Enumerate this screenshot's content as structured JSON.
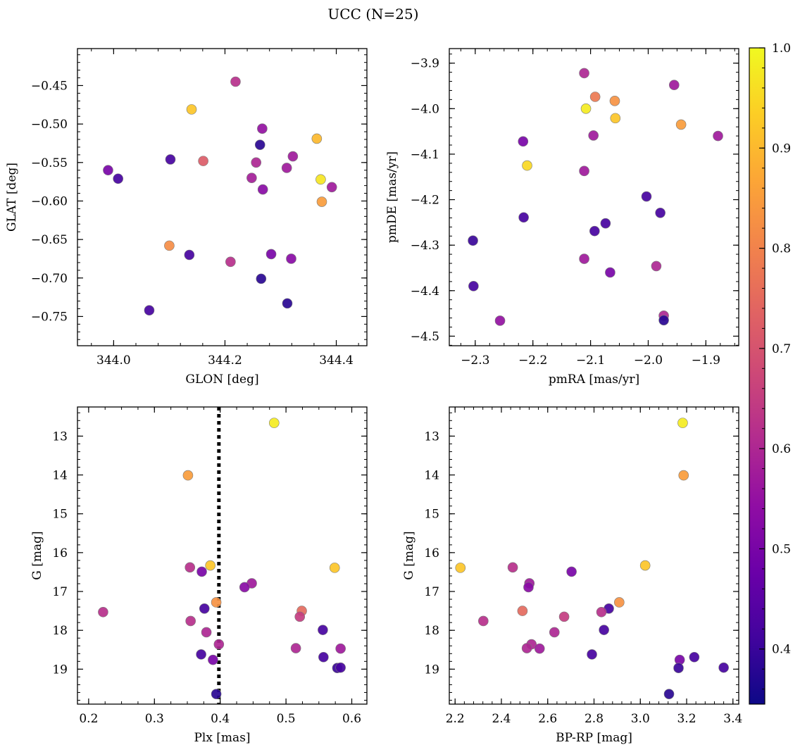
{
  "figure_title": "UCC (N=25)",
  "colorbar": {
    "range": [
      0.345,
      1.0
    ],
    "ticks": [
      "0.4",
      "0.5",
      "0.6",
      "0.7",
      "0.8",
      "0.9",
      "1.0"
    ],
    "colormap": "plasma"
  },
  "chart_data": [
    {
      "type": "scatter",
      "title": "",
      "xlabel": "GLON [deg]",
      "ylabel": "GLAT [deg]",
      "xlim": [
        343.935,
        344.455
      ],
      "ylim": [
        -0.788,
        -0.402
      ],
      "y_inverted": false,
      "xticks": [
        "344.0",
        "344.2",
        "344.4"
      ],
      "yticks": [
        "-0.45",
        "-0.50",
        "-0.55",
        "-0.60",
        "-0.65",
        "-0.70",
        "-0.75"
      ],
      "grid": false,
      "points": [
        {
          "x": 344.219,
          "y": -0.445,
          "c": 0.62
        },
        {
          "x": 344.14,
          "y": -0.481,
          "c": 0.92
        },
        {
          "x": 344.267,
          "y": -0.506,
          "c": 0.55
        },
        {
          "x": 344.365,
          "y": -0.519,
          "c": 0.9
        },
        {
          "x": 344.263,
          "y": -0.527,
          "c": 0.38
        },
        {
          "x": 344.322,
          "y": -0.542,
          "c": 0.57
        },
        {
          "x": 344.102,
          "y": -0.546,
          "c": 0.42
        },
        {
          "x": 344.161,
          "y": -0.548,
          "c": 0.72
        },
        {
          "x": 344.256,
          "y": -0.55,
          "c": 0.6
        },
        {
          "x": 344.311,
          "y": -0.557,
          "c": 0.57
        },
        {
          "x": 343.99,
          "y": -0.56,
          "c": 0.5
        },
        {
          "x": 344.248,
          "y": -0.57,
          "c": 0.58
        },
        {
          "x": 344.008,
          "y": -0.571,
          "c": 0.42
        },
        {
          "x": 344.372,
          "y": -0.572,
          "c": 0.97
        },
        {
          "x": 344.392,
          "y": -0.582,
          "c": 0.57
        },
        {
          "x": 344.268,
          "y": -0.585,
          "c": 0.53
        },
        {
          "x": 344.374,
          "y": -0.601,
          "c": 0.85
        },
        {
          "x": 344.1,
          "y": -0.658,
          "c": 0.82
        },
        {
          "x": 344.136,
          "y": -0.67,
          "c": 0.42
        },
        {
          "x": 344.283,
          "y": -0.669,
          "c": 0.5
        },
        {
          "x": 344.319,
          "y": -0.675,
          "c": 0.53
        },
        {
          "x": 344.21,
          "y": -0.679,
          "c": 0.62
        },
        {
          "x": 344.265,
          "y": -0.701,
          "c": 0.38
        },
        {
          "x": 344.312,
          "y": -0.733,
          "c": 0.38
        },
        {
          "x": 344.064,
          "y": -0.742,
          "c": 0.42
        }
      ]
    },
    {
      "type": "scatter",
      "title": "",
      "xlabel": "pmRA [mas/yr]",
      "ylabel": "pmDE [mas/yr]",
      "xlim": [
        -2.345,
        -1.843
      ],
      "ylim": [
        -4.521,
        -3.868
      ],
      "y_inverted": false,
      "xticks": [
        "-2.3",
        "-2.2",
        "-2.1",
        "-2.0",
        "-1.9"
      ],
      "yticks": [
        "-3.9",
        "-4.0",
        "-4.1",
        "-4.2",
        "-4.3",
        "-4.4",
        "-4.5"
      ],
      "grid": false,
      "points": [
        {
          "x": -2.111,
          "y": -3.922,
          "c": 0.6
        },
        {
          "x": -1.955,
          "y": -3.948,
          "c": 0.57
        },
        {
          "x": -2.092,
          "y": -3.974,
          "c": 0.78
        },
        {
          "x": -2.058,
          "y": -3.983,
          "c": 0.83
        },
        {
          "x": -2.108,
          "y": -4.0,
          "c": 0.98
        },
        {
          "x": -2.057,
          "y": -4.021,
          "c": 0.92
        },
        {
          "x": -1.943,
          "y": -4.035,
          "c": 0.85
        },
        {
          "x": -2.095,
          "y": -4.059,
          "c": 0.57
        },
        {
          "x": -1.879,
          "y": -4.06,
          "c": 0.57
        },
        {
          "x": -2.217,
          "y": -4.072,
          "c": 0.5
        },
        {
          "x": -2.21,
          "y": -4.125,
          "c": 0.95
        },
        {
          "x": -2.111,
          "y": -4.137,
          "c": 0.57
        },
        {
          "x": -2.003,
          "y": -4.193,
          "c": 0.42
        },
        {
          "x": -1.979,
          "y": -4.229,
          "c": 0.42
        },
        {
          "x": -2.216,
          "y": -4.239,
          "c": 0.42
        },
        {
          "x": -2.074,
          "y": -4.252,
          "c": 0.42
        },
        {
          "x": -2.093,
          "y": -4.269,
          "c": 0.42
        },
        {
          "x": -2.304,
          "y": -4.29,
          "c": 0.4
        },
        {
          "x": -2.111,
          "y": -4.33,
          "c": 0.57
        },
        {
          "x": -1.986,
          "y": -4.346,
          "c": 0.6
        },
        {
          "x": -2.066,
          "y": -4.36,
          "c": 0.5
        },
        {
          "x": -2.303,
          "y": -4.39,
          "c": 0.42
        },
        {
          "x": -1.973,
          "y": -4.455,
          "c": 0.6
        },
        {
          "x": -1.973,
          "y": -4.465,
          "c": 0.38
        },
        {
          "x": -2.257,
          "y": -4.466,
          "c": 0.55
        }
      ]
    },
    {
      "type": "scatter",
      "title": "",
      "xlabel": "Plx [mas]",
      "ylabel": "G [mag]",
      "xlim": [
        0.183,
        0.623
      ],
      "ylim": [
        12.25,
        19.9
      ],
      "y_inverted": true,
      "xticks": [
        "0.2",
        "0.3",
        "0.4",
        "0.5",
        "0.6"
      ],
      "yticks": [
        "13",
        "14",
        "15",
        "16",
        "17",
        "18",
        "19"
      ],
      "grid": false,
      "reference_line": {
        "x": 0.398,
        "style": "dotted"
      },
      "points": [
        {
          "x": 0.482,
          "y": 12.66,
          "c": 0.98
        },
        {
          "x": 0.351,
          "y": 14.01,
          "c": 0.85
        },
        {
          "x": 0.385,
          "y": 16.33,
          "c": 0.92
        },
        {
          "x": 0.354,
          "y": 16.38,
          "c": 0.62
        },
        {
          "x": 0.574,
          "y": 16.39,
          "c": 0.92
        },
        {
          "x": 0.372,
          "y": 16.49,
          "c": 0.5
        },
        {
          "x": 0.448,
          "y": 16.79,
          "c": 0.57
        },
        {
          "x": 0.437,
          "y": 16.89,
          "c": 0.53
        },
        {
          "x": 0.394,
          "y": 17.28,
          "c": 0.83
        },
        {
          "x": 0.376,
          "y": 17.44,
          "c": 0.42
        },
        {
          "x": 0.524,
          "y": 17.5,
          "c": 0.75
        },
        {
          "x": 0.222,
          "y": 17.53,
          "c": 0.62
        },
        {
          "x": 0.521,
          "y": 17.65,
          "c": 0.65
        },
        {
          "x": 0.355,
          "y": 17.76,
          "c": 0.62
        },
        {
          "x": 0.556,
          "y": 17.99,
          "c": 0.42
        },
        {
          "x": 0.379,
          "y": 18.05,
          "c": 0.6
        },
        {
          "x": 0.398,
          "y": 18.36,
          "c": 0.6
        },
        {
          "x": 0.515,
          "y": 18.46,
          "c": 0.6
        },
        {
          "x": 0.583,
          "y": 18.47,
          "c": 0.57
        },
        {
          "x": 0.371,
          "y": 18.62,
          "c": 0.42
        },
        {
          "x": 0.557,
          "y": 18.69,
          "c": 0.42
        },
        {
          "x": 0.389,
          "y": 18.76,
          "c": 0.5
        },
        {
          "x": 0.578,
          "y": 18.97,
          "c": 0.4
        },
        {
          "x": 0.583,
          "y": 18.96,
          "c": 0.42
        },
        {
          "x": 0.394,
          "y": 19.64,
          "c": 0.38
        }
      ]
    },
    {
      "type": "scatter",
      "title": "",
      "xlabel": "BP-RP [mag]",
      "ylabel": "G [mag]",
      "xlim": [
        2.175,
        3.425
      ],
      "ylim": [
        12.25,
        19.9
      ],
      "y_inverted": true,
      "xticks": [
        "2.2",
        "2.4",
        "2.6",
        "2.8",
        "3.0",
        "3.2",
        "3.4"
      ],
      "yticks": [
        "13",
        "14",
        "15",
        "16",
        "17",
        "18",
        "19"
      ],
      "grid": false,
      "points": [
        {
          "x": 3.183,
          "y": 12.66,
          "c": 0.98
        },
        {
          "x": 3.187,
          "y": 14.01,
          "c": 0.85
        },
        {
          "x": 3.021,
          "y": 16.33,
          "c": 0.92
        },
        {
          "x": 2.449,
          "y": 16.38,
          "c": 0.62
        },
        {
          "x": 2.223,
          "y": 16.39,
          "c": 0.92
        },
        {
          "x": 2.703,
          "y": 16.49,
          "c": 0.5
        },
        {
          "x": 2.521,
          "y": 16.79,
          "c": 0.57
        },
        {
          "x": 2.517,
          "y": 16.89,
          "c": 0.53
        },
        {
          "x": 2.909,
          "y": 17.28,
          "c": 0.83
        },
        {
          "x": 2.864,
          "y": 17.44,
          "c": 0.42
        },
        {
          "x": 2.491,
          "y": 17.5,
          "c": 0.75
        },
        {
          "x": 2.832,
          "y": 17.53,
          "c": 0.62
        },
        {
          "x": 2.671,
          "y": 17.65,
          "c": 0.65
        },
        {
          "x": 2.322,
          "y": 17.76,
          "c": 0.62
        },
        {
          "x": 2.843,
          "y": 17.99,
          "c": 0.42
        },
        {
          "x": 2.629,
          "y": 18.05,
          "c": 0.6
        },
        {
          "x": 2.53,
          "y": 18.36,
          "c": 0.6
        },
        {
          "x": 2.51,
          "y": 18.46,
          "c": 0.6
        },
        {
          "x": 2.565,
          "y": 18.47,
          "c": 0.57
        },
        {
          "x": 2.791,
          "y": 18.62,
          "c": 0.42
        },
        {
          "x": 3.233,
          "y": 18.69,
          "c": 0.42
        },
        {
          "x": 3.17,
          "y": 18.76,
          "c": 0.5
        },
        {
          "x": 3.165,
          "y": 18.97,
          "c": 0.4
        },
        {
          "x": 3.36,
          "y": 18.96,
          "c": 0.42
        },
        {
          "x": 3.124,
          "y": 19.64,
          "c": 0.38
        }
      ]
    }
  ]
}
